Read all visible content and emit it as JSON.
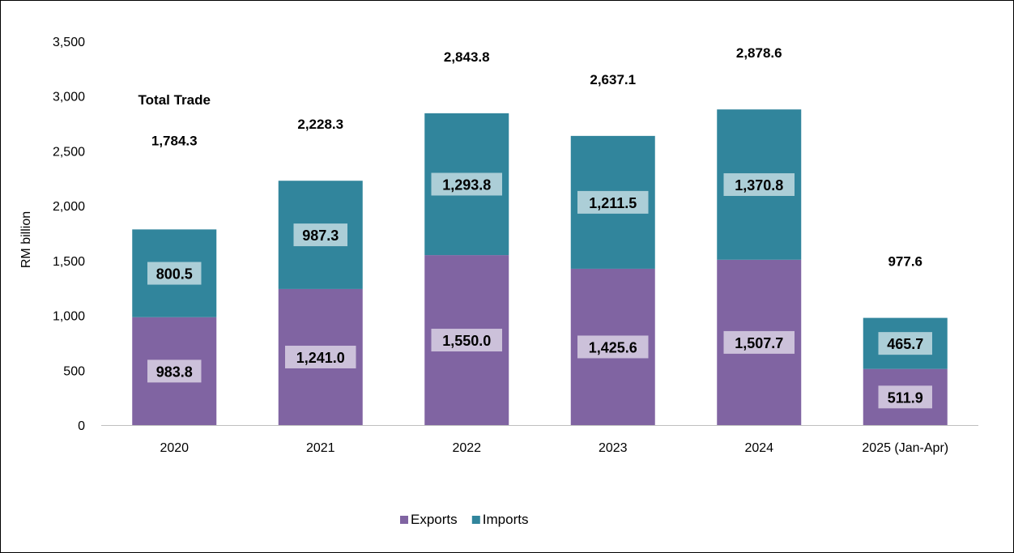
{
  "chart_data": {
    "type": "bar",
    "stacked": true,
    "categories": [
      "2020",
      "2021",
      "2022",
      "2023",
      "2024",
      "2025 (Jan-Apr)"
    ],
    "series": [
      {
        "name": "Exports",
        "values": [
          983.8,
          1241.0,
          1550.0,
          1425.6,
          1507.7,
          511.9
        ],
        "labels": [
          "983.8",
          "1,241.0",
          "1,550.0",
          "1,425.6",
          "1,507.7",
          "511.9"
        ],
        "color": "#8064a2"
      },
      {
        "name": "Imports",
        "values": [
          800.5,
          987.3,
          1293.8,
          1211.5,
          1370.8,
          465.7
        ],
        "labels": [
          "800.5",
          "987.3",
          "1,293.8",
          "1,211.5",
          "1,370.8",
          "465.7"
        ],
        "color": "#31859c"
      }
    ],
    "totals": [
      1784.3,
      2228.3,
      2843.8,
      2637.1,
      2878.6,
      977.6
    ],
    "total_labels": [
      "1,784.3",
      "2,228.3",
      "2,843.8",
      "2,637.1",
      "2,878.6",
      "977.6"
    ],
    "annotation": "Total Trade",
    "ylabel": "RM billion",
    "xlabel": "",
    "ylim": [
      0,
      3500
    ],
    "yticks": [
      0,
      500,
      1000,
      1500,
      2000,
      2500,
      3000,
      3500
    ],
    "ytick_labels": [
      "0",
      "500",
      "1,000",
      "1,500",
      "2,000",
      "2,500",
      "3,000",
      "3,500"
    ],
    "grid": false,
    "legend_position": "bottom",
    "label_box_color": "#ffffff"
  }
}
